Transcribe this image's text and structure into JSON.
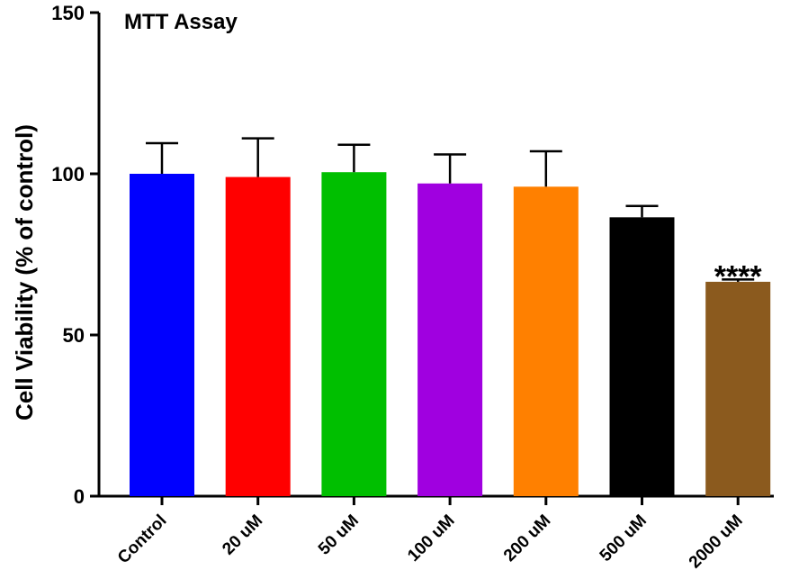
{
  "chart_data": {
    "type": "bar",
    "title": "MTT Assay",
    "xlabel": "",
    "ylabel": "Cell Viability (% of control)",
    "ylim": [
      0,
      150
    ],
    "yticks": [
      0,
      50,
      100,
      150
    ],
    "grid": false,
    "legend": "none",
    "categories": [
      "Control",
      "20 uM",
      "50 uM",
      "100 uM",
      "200 uM",
      "500 uM",
      "2000 uM"
    ],
    "values": [
      100,
      99,
      100.5,
      97,
      96,
      86.5,
      66.5
    ],
    "errors": [
      9.5,
      12,
      8.5,
      9,
      11,
      3.5,
      0.7
    ],
    "colors": [
      "#0000ff",
      "#ff0000",
      "#00bf00",
      "#a000e0",
      "#ff8000",
      "#000000",
      "#8b5a1e"
    ],
    "annotations": [
      {
        "category": "2000 uM",
        "text": "****"
      }
    ]
  }
}
